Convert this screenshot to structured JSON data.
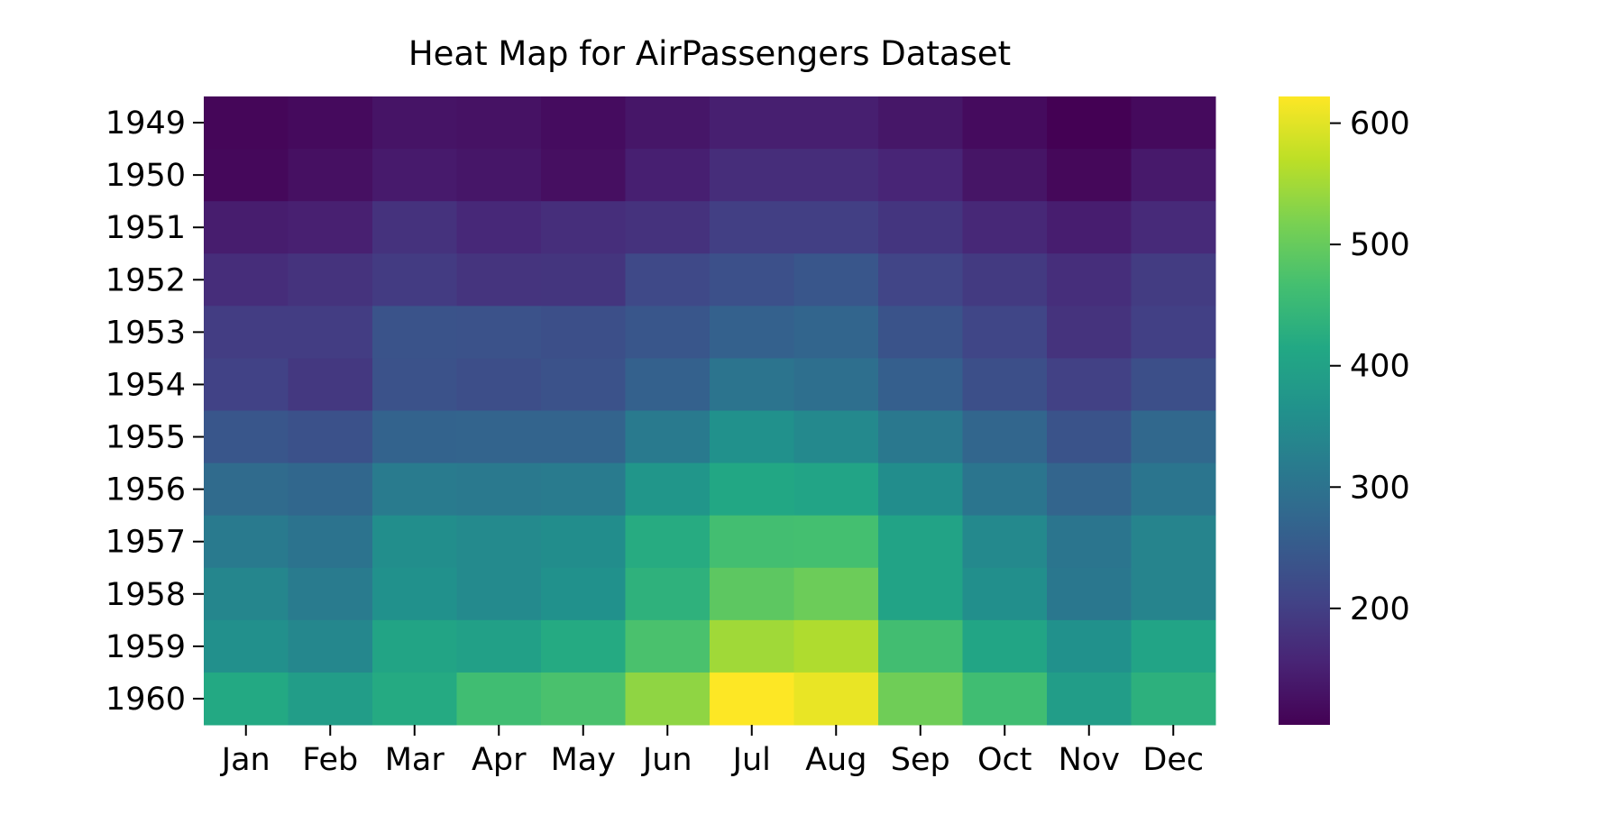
{
  "chart_data": {
    "type": "heatmap",
    "title": "Heat Map for AirPassengers Dataset",
    "xlabel": "",
    "ylabel": "",
    "colormap": "viridis",
    "x_categories": [
      "Jan",
      "Feb",
      "Mar",
      "Apr",
      "May",
      "Jun",
      "Jul",
      "Aug",
      "Sep",
      "Oct",
      "Nov",
      "Dec"
    ],
    "y_categories": [
      "1949",
      "1950",
      "1951",
      "1952",
      "1953",
      "1954",
      "1955",
      "1956",
      "1957",
      "1958",
      "1959",
      "1960"
    ],
    "values": [
      [
        112,
        118,
        132,
        129,
        121,
        135,
        148,
        148,
        136,
        119,
        104,
        118
      ],
      [
        115,
        126,
        141,
        135,
        125,
        149,
        170,
        170,
        158,
        133,
        114,
        140
      ],
      [
        145,
        150,
        178,
        163,
        172,
        178,
        199,
        199,
        184,
        162,
        146,
        166
      ],
      [
        171,
        180,
        193,
        181,
        183,
        218,
        230,
        242,
        209,
        191,
        172,
        194
      ],
      [
        196,
        196,
        236,
        235,
        229,
        243,
        264,
        272,
        237,
        211,
        180,
        201
      ],
      [
        204,
        188,
        235,
        227,
        234,
        264,
        302,
        293,
        259,
        229,
        203,
        229
      ],
      [
        242,
        233,
        267,
        269,
        270,
        315,
        364,
        347,
        312,
        274,
        237,
        278
      ],
      [
        284,
        277,
        317,
        313,
        318,
        374,
        413,
        405,
        355,
        306,
        271,
        306
      ],
      [
        315,
        301,
        356,
        348,
        355,
        422,
        465,
        467,
        404,
        347,
        305,
        336
      ],
      [
        340,
        318,
        362,
        348,
        363,
        435,
        491,
        505,
        404,
        359,
        310,
        337
      ],
      [
        360,
        342,
        406,
        396,
        420,
        472,
        548,
        559,
        463,
        407,
        362,
        405
      ],
      [
        417,
        391,
        419,
        461,
        472,
        535,
        622,
        606,
        508,
        461,
        390,
        432
      ]
    ],
    "colorbar": {
      "range": [
        104,
        622
      ],
      "ticks": [
        200,
        300,
        400,
        500,
        600
      ],
      "tick_labels": [
        "200",
        "300",
        "400",
        "500",
        "600"
      ]
    }
  }
}
